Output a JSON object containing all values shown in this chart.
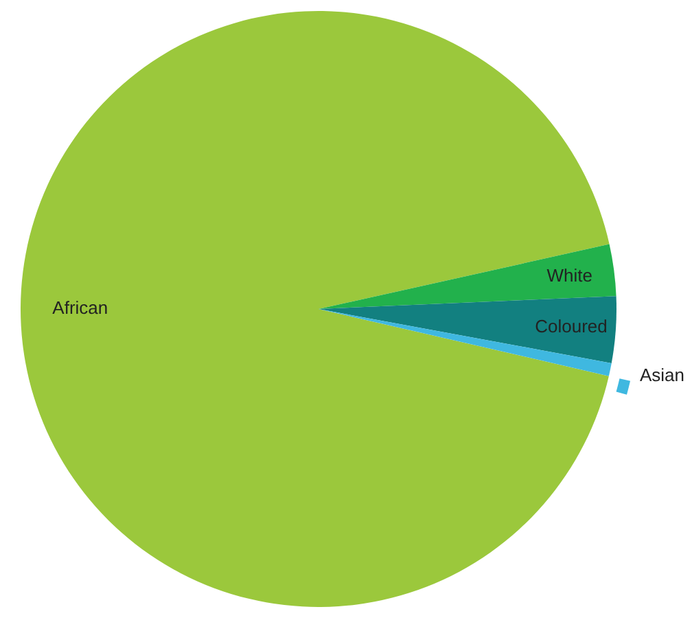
{
  "chart_data": {
    "type": "pie",
    "categories": [
      "African",
      "White",
      "Coloured",
      "Asian"
    ],
    "values": [
      92.9,
      2.8,
      3.6,
      0.7
    ],
    "colors": [
      "#9bc83c",
      "#22b14c",
      "#128080",
      "#3fb8e0"
    ]
  }
}
